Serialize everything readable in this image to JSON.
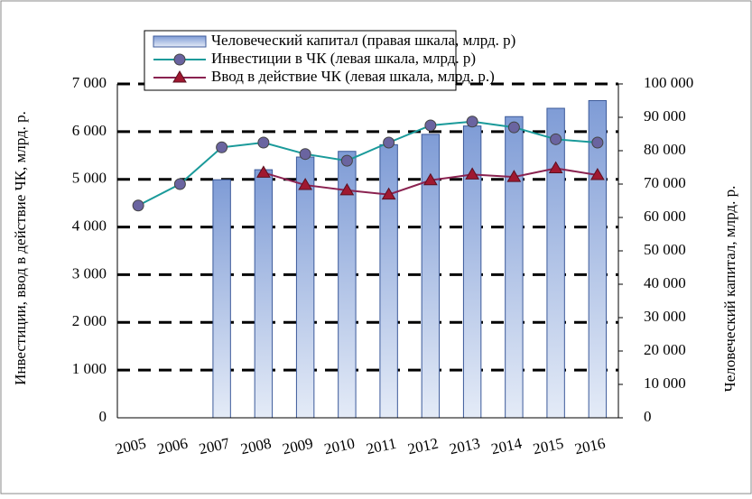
{
  "chart_data": {
    "type": "bar-line",
    "y_label": "Инвестиции, ввод в действие  ЧК, млрд. р.",
    "y2_label": "Человеческий капитал, млрд. р.",
    "categories": [
      "2005",
      "2006",
      "2007",
      "2008",
      "2009",
      "2010",
      "2011",
      "2012",
      "2013",
      "2014",
      "2015",
      "2016"
    ],
    "series": [
      {
        "name": "Человеческий капитал (правая шкала, млрд. р)",
        "type": "bar",
        "axis": "y2",
        "color": "#8eaadf",
        "values": [
          null,
          null,
          71300,
          74300,
          78100,
          79800,
          81800,
          84900,
          87400,
          90200,
          92700,
          95000
        ]
      },
      {
        "name": "Инвестиции в ЧК (левая шкала, млрд. р)",
        "type": "line",
        "marker": "circle",
        "color": "#1a9a9a",
        "marker_color": "#6a64a0",
        "values": [
          4450,
          4900,
          5670,
          5770,
          5530,
          5390,
          5770,
          6130,
          6210,
          6090,
          5840,
          5770
        ]
      },
      {
        "name": "Ввод в действие ЧК (левая шкала, млрд. р.)",
        "type": "line",
        "marker": "triangle",
        "color": "#8a2250",
        "marker_color": "#a01830",
        "values": [
          null,
          null,
          null,
          5140,
          4880,
          4770,
          4680,
          4980,
          5100,
          5050,
          5230,
          5090
        ]
      }
    ],
    "ylim": [
      0,
      7000
    ],
    "yticks": [
      0,
      {
        "value": 1000,
        "label": "1 000"
      },
      {
        "value": 2000,
        "label": "2 000"
      },
      {
        "value": 3000,
        "label": "3 000"
      },
      {
        "value": 4000,
        "label": "4 000"
      },
      {
        "value": 5000,
        "label": "5 000"
      },
      {
        "value": 6000,
        "label": "6 000"
      },
      {
        "value": 7000,
        "label": "7 000"
      }
    ],
    "y2lim": [
      0,
      100000
    ],
    "y2ticks": [
      0,
      {
        "value": 10000,
        "label": "10 000"
      },
      {
        "value": 20000,
        "label": "20 000"
      },
      {
        "value": 30000,
        "label": "30 000"
      },
      {
        "value": 40000,
        "label": "40 000"
      },
      {
        "value": 50000,
        "label": "50 000"
      },
      {
        "value": 60000,
        "label": "60 000"
      },
      {
        "value": 70000,
        "label": "70 000"
      },
      {
        "value": 80000,
        "label": "80 000"
      },
      {
        "value": 90000,
        "label": "90 000"
      },
      {
        "value": 100000,
        "label": "100 000"
      }
    ],
    "grid": true
  }
}
